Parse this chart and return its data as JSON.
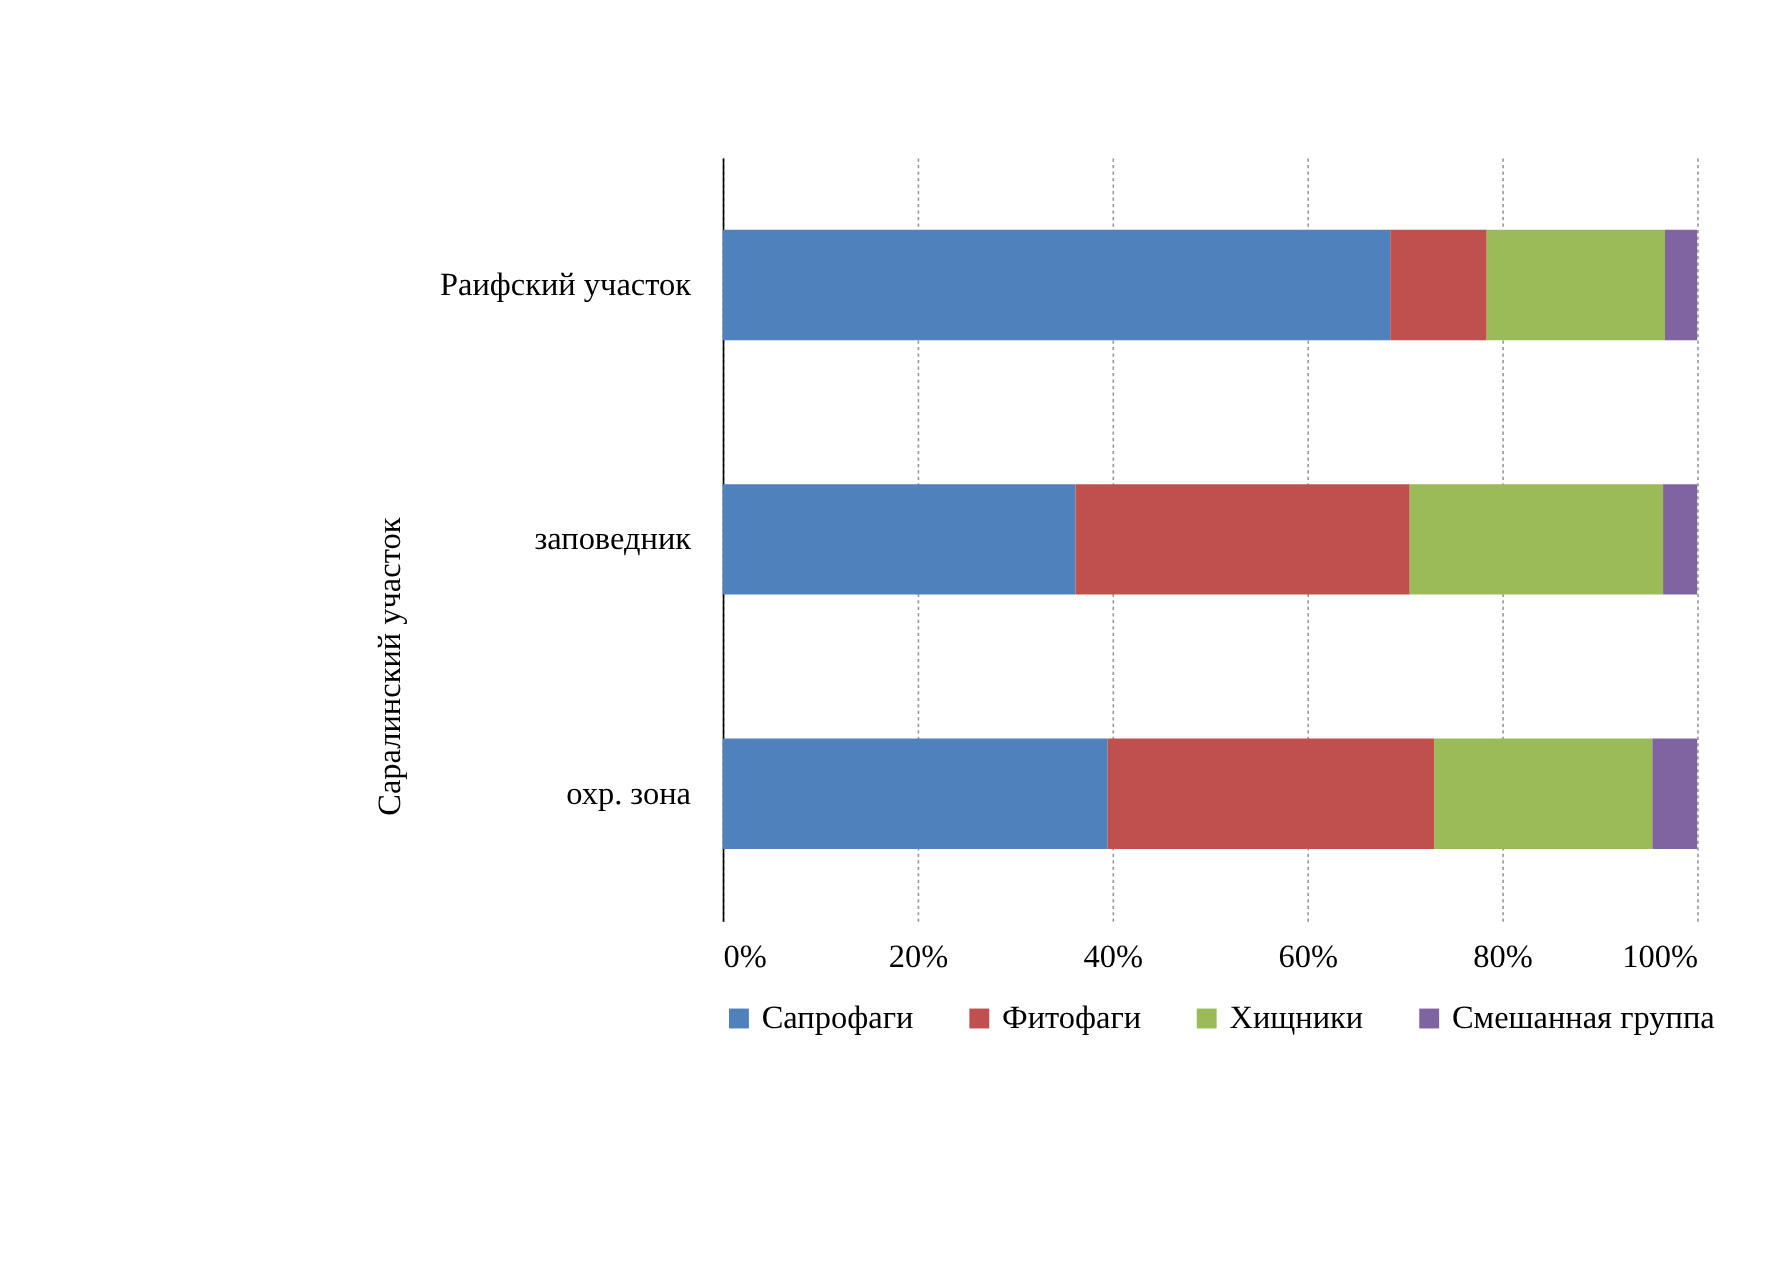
{
  "chart_data": {
    "type": "bar",
    "orientation": "horizontal",
    "stacked": true,
    "categories": [
      "Раифский участок",
      "заповедник",
      "охр. зона"
    ],
    "series": [
      {
        "name": "Сапрофаги",
        "color": "#4f81bd",
        "values": [
          68.5,
          36.2,
          39.5
        ]
      },
      {
        "name": "Фитофаги",
        "color": "#c0504d",
        "values": [
          9.9,
          34.3,
          33.5
        ]
      },
      {
        "name": "Хищники",
        "color": "#9bbb59",
        "values": [
          18.3,
          26.0,
          22.4
        ]
      },
      {
        "name": "Смешанная группа",
        "color": "#8064a2",
        "values": [
          3.3,
          3.5,
          4.6
        ]
      }
    ],
    "xlim": [
      0,
      100
    ],
    "xticks": [
      {
        "value": 0,
        "label": "0%"
      },
      {
        "value": 20,
        "label": "20%"
      },
      {
        "value": 40,
        "label": "40%"
      },
      {
        "value": 60,
        "label": "60%"
      },
      {
        "value": 80,
        "label": "80%"
      },
      {
        "value": 100,
        "label": "100%"
      }
    ],
    "annotations": [
      "Саралинский участок"
    ],
    "grid": "x",
    "legend": "bottom"
  }
}
